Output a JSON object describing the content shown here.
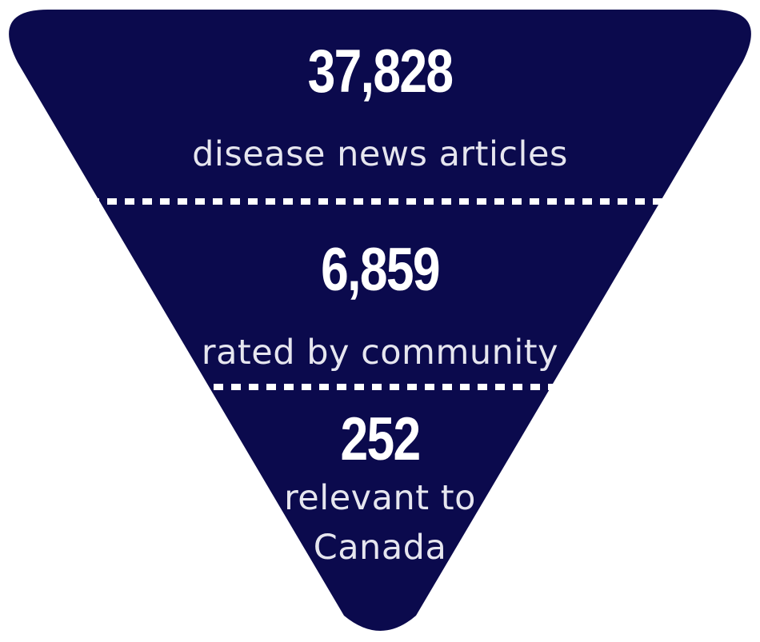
{
  "colors": {
    "funnel_fill": "#0b0a4d",
    "divider": "#ffffff",
    "text": "#ffffff"
  },
  "funnel": {
    "tiers": [
      {
        "value": "37,828",
        "label": "disease news articles"
      },
      {
        "value": "6,859",
        "label": "rated by community"
      },
      {
        "value": "252",
        "label_line1": "relevant to",
        "label_line2": "Canada"
      }
    ]
  }
}
